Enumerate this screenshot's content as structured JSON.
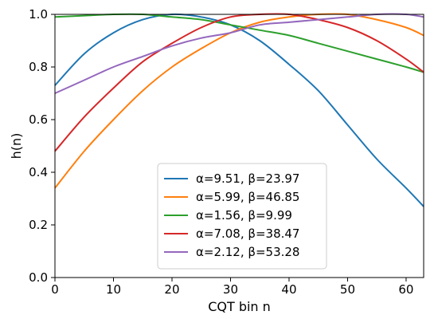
{
  "chart_data": {
    "type": "line",
    "title": "",
    "xlabel": "CQT bin n",
    "ylabel": "h(n)",
    "xlim": [
      0,
      63
    ],
    "ylim": [
      0,
      1.0
    ],
    "xticks": [
      0,
      10,
      20,
      30,
      40,
      50,
      60
    ],
    "yticks": [
      0.0,
      0.2,
      0.4,
      0.6,
      0.8,
      1.0
    ],
    "xtick_labels": [
      "0",
      "10",
      "20",
      "30",
      "40",
      "50",
      "60"
    ],
    "ytick_labels": [
      "0.0",
      "0.2",
      "0.4",
      "0.6",
      "0.8",
      "1.0"
    ],
    "grid": false,
    "legend_placement": "bottom-center",
    "x": [
      0,
      5,
      10,
      15,
      20,
      25,
      30,
      35,
      40,
      45,
      50,
      55,
      60,
      63
    ],
    "series": [
      {
        "name": "α=9.51, β=23.97",
        "color": "#1f77b4",
        "values": [
          0.73,
          0.85,
          0.93,
          0.98,
          1.0,
          0.99,
          0.96,
          0.9,
          0.81,
          0.71,
          0.58,
          0.45,
          0.34,
          0.27
        ]
      },
      {
        "name": "α=5.99, β=46.85",
        "color": "#ff7f0e",
        "values": [
          0.34,
          0.48,
          0.6,
          0.71,
          0.8,
          0.87,
          0.93,
          0.97,
          0.99,
          1.0,
          1.0,
          0.98,
          0.95,
          0.92
        ]
      },
      {
        "name": "α=1.56, β=9.99",
        "color": "#2ca02c",
        "values": [
          0.99,
          0.995,
          1.0,
          1.0,
          0.99,
          0.98,
          0.96,
          0.94,
          0.92,
          0.89,
          0.86,
          0.83,
          0.8,
          0.78
        ]
      },
      {
        "name": "α=7.08, β=38.47",
        "color": "#d62728",
        "values": [
          0.48,
          0.61,
          0.72,
          0.82,
          0.89,
          0.95,
          0.99,
          1.0,
          1.0,
          0.98,
          0.95,
          0.9,
          0.83,
          0.78
        ]
      },
      {
        "name": "α=2.12, β=53.28",
        "color": "#9467bd",
        "values": [
          0.7,
          0.75,
          0.8,
          0.84,
          0.88,
          0.91,
          0.93,
          0.96,
          0.97,
          0.98,
          0.99,
          1.0,
          1.0,
          0.99
        ]
      }
    ]
  }
}
